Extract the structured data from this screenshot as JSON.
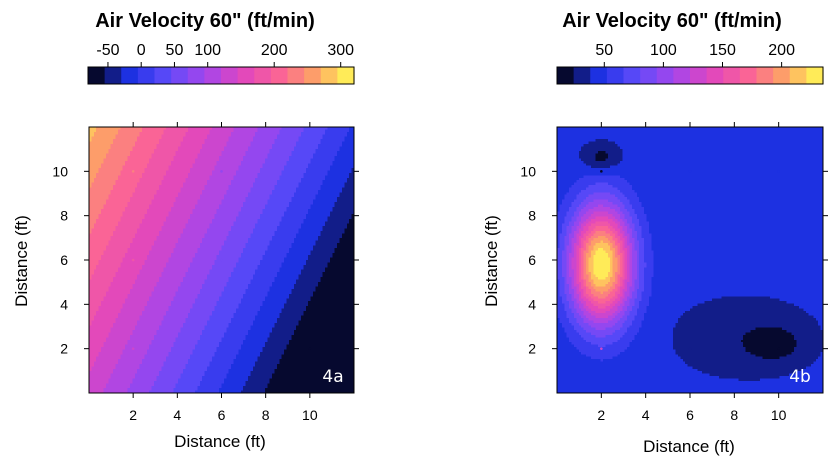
{
  "chart_data": [
    {
      "type": "heatmap",
      "title": "Air Velocity 60\" (ft/min)",
      "xlabel": "Distance (ft)",
      "ylabel": "Distance (ft)",
      "panel_label": "4a",
      "xlim": [
        0,
        12
      ],
      "ylim": [
        0,
        12
      ],
      "xticks": [
        2,
        4,
        6,
        8,
        10
      ],
      "yticks": [
        2,
        4,
        6,
        8,
        10
      ],
      "colorbar": {
        "min": -80,
        "max": 320,
        "ticks": [
          -50,
          0,
          50,
          100,
          200,
          300
        ]
      },
      "plane": {
        "intercept": 135,
        "coef_x": -24,
        "coef_y": 12
      },
      "sample_points": [
        {
          "x": 2,
          "y": 10,
          "v": 230
        },
        {
          "x": 6,
          "y": 10,
          "v": 90
        },
        {
          "x": 2,
          "y": 6,
          "v": 180
        },
        {
          "x": 6,
          "y": 6,
          "v": 60
        },
        {
          "x": 2,
          "y": 2,
          "v": 130
        },
        {
          "x": 10,
          "y": 2,
          "v": -80
        }
      ]
    },
    {
      "type": "heatmap",
      "title": "Air Velocity 60\" (ft/min)",
      "xlabel": "Distance (ft)",
      "ylabel": "Distance (ft)",
      "panel_label": "4b",
      "xlim": [
        0,
        12
      ],
      "ylim": [
        0,
        12
      ],
      "xticks": [
        2,
        4,
        6,
        8,
        10
      ],
      "yticks": [
        2,
        4,
        6,
        8,
        10
      ],
      "colorbar": {
        "min": 10,
        "max": 235,
        "ticks": [
          50,
          100,
          150,
          200
        ]
      },
      "base": 40,
      "bumps": [
        {
          "x": 2,
          "y": 5.8,
          "amp": 195,
          "sx": 1.4,
          "sy": 2.6
        },
        {
          "x": 2,
          "y": 10.6,
          "amp": -25,
          "sx": 0.8,
          "sy": 0.6
        },
        {
          "x": 9.8,
          "y": 2.2,
          "amp": -25,
          "sx": 1.1,
          "sy": 0.7
        },
        {
          "x": 8.5,
          "y": 2.5,
          "amp": -12,
          "sx": 2.5,
          "sy": 1.4
        }
      ],
      "sample_points": [
        {
          "x": 2,
          "y": 10,
          "v": 20
        },
        {
          "x": 6,
          "y": 10,
          "v": 45
        },
        {
          "x": 10,
          "y": 10,
          "v": 40
        },
        {
          "x": 2,
          "y": 6,
          "v": 235
        },
        {
          "x": 2,
          "y": 2,
          "v": 130
        },
        {
          "x": 6,
          "y": 2,
          "v": 35
        },
        {
          "x": 10,
          "y": 2,
          "v": 10
        }
      ]
    }
  ]
}
